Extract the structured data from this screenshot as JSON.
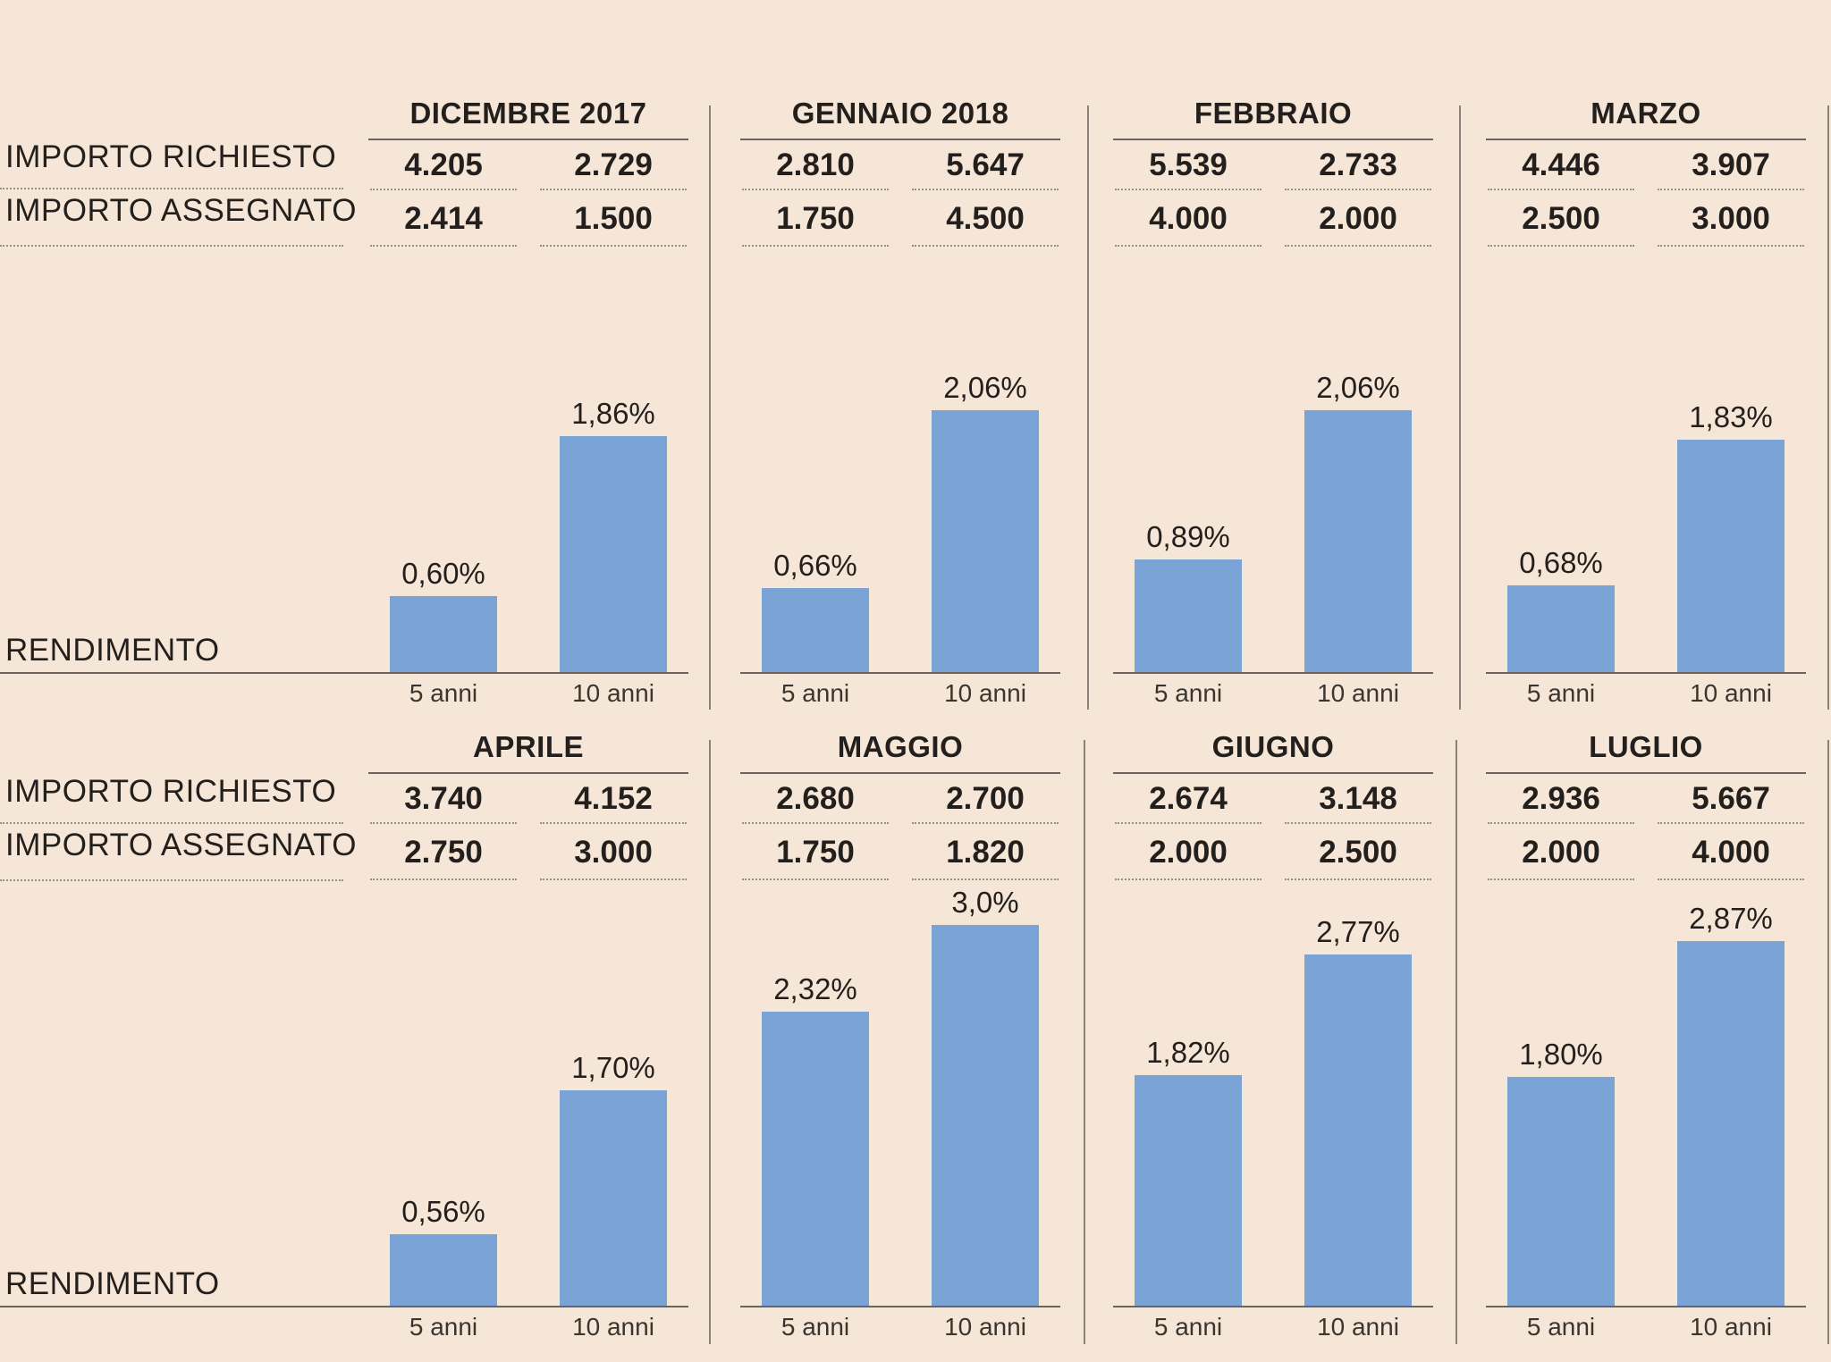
{
  "labels": {
    "requested": "IMPORTO RICHIESTO",
    "assigned": "IMPORTO ASSEGNATO",
    "yield": "RENDIMENTO"
  },
  "colors": {
    "background": "#f5e6d7",
    "bar": "#7aa3d6",
    "text": "#231f1c",
    "rule": "#6b635d"
  },
  "chart_data": [
    {
      "type": "bar",
      "title": "DICEMBRE 2017",
      "categories": [
        "5 anni",
        "10 anni"
      ],
      "requested": [
        "4.205",
        "2.729"
      ],
      "assigned": [
        "2.414",
        "1.500"
      ],
      "values": [
        0.6,
        1.86
      ],
      "value_labels": [
        "0,60%",
        "1,86%"
      ],
      "ylim": [
        0,
        3.0
      ]
    },
    {
      "type": "bar",
      "title": "GENNAIO 2018",
      "categories": [
        "5 anni",
        "10 anni"
      ],
      "requested": [
        "2.810",
        "5.647"
      ],
      "assigned": [
        "1.750",
        "4.500"
      ],
      "values": [
        0.66,
        2.06
      ],
      "value_labels": [
        "0,66%",
        "2,06%"
      ],
      "ylim": [
        0,
        3.0
      ]
    },
    {
      "type": "bar",
      "title": "FEBBRAIO",
      "categories": [
        "5 anni",
        "10 anni"
      ],
      "requested": [
        "5.539",
        "2.733"
      ],
      "assigned": [
        "4.000",
        "2.000"
      ],
      "values": [
        0.89,
        2.06
      ],
      "value_labels": [
        "0,89%",
        "2,06%"
      ],
      "ylim": [
        0,
        3.0
      ]
    },
    {
      "type": "bar",
      "title": "MARZO",
      "categories": [
        "5 anni",
        "10 anni"
      ],
      "requested": [
        "4.446",
        "3.907"
      ],
      "assigned": [
        "2.500",
        "3.000"
      ],
      "values": [
        0.68,
        1.83
      ],
      "value_labels": [
        "0,68%",
        "1,83%"
      ],
      "ylim": [
        0,
        3.0
      ]
    },
    {
      "type": "bar",
      "title": "APRILE",
      "categories": [
        "5 anni",
        "10 anni"
      ],
      "requested": [
        "3.740",
        "4.152"
      ],
      "assigned": [
        "2.750",
        "3.000"
      ],
      "values": [
        0.56,
        1.7
      ],
      "value_labels": [
        "0,56%",
        "1,70%"
      ],
      "ylim": [
        0,
        3.0
      ]
    },
    {
      "type": "bar",
      "title": "MAGGIO",
      "categories": [
        "5 anni",
        "10 anni"
      ],
      "requested": [
        "2.680",
        "2.700"
      ],
      "assigned": [
        "1.750",
        "1.820"
      ],
      "values": [
        2.32,
        3.0
      ],
      "value_labels": [
        "2,32%",
        "3,0%"
      ],
      "ylim": [
        0,
        3.0
      ]
    },
    {
      "type": "bar",
      "title": "GIUGNO",
      "categories": [
        "5 anni",
        "10 anni"
      ],
      "requested": [
        "2.674",
        "3.148"
      ],
      "assigned": [
        "2.000",
        "2.500"
      ],
      "values": [
        1.82,
        2.77
      ],
      "value_labels": [
        "1,82%",
        "2,77%"
      ],
      "ylim": [
        0,
        3.0
      ]
    },
    {
      "type": "bar",
      "title": "LUGLIO",
      "categories": [
        "5 anni",
        "10 anni"
      ],
      "requested": [
        "2.936",
        "5.667"
      ],
      "assigned": [
        "2.000",
        "4.000"
      ],
      "values": [
        1.8,
        2.87
      ],
      "value_labels": [
        "1,80%",
        "2,87%"
      ],
      "ylim": [
        0,
        3.0
      ]
    }
  ]
}
